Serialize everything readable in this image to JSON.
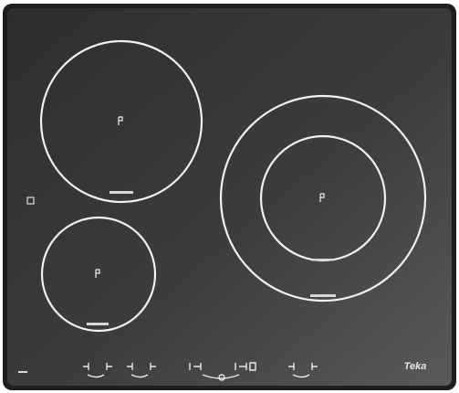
{
  "brand": "Teka"
}
